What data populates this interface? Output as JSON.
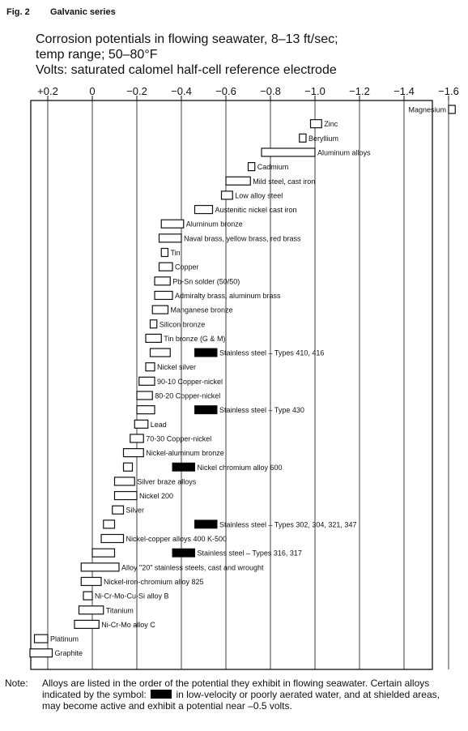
{
  "header": {
    "fig_label": "Fig. 2",
    "fig_title": "Galvanic series",
    "subtitle_lines": [
      "Corrosion potentials in flowing seawater, 8–13 ft/sec;",
      "temp range; 50–80°F",
      "Volts: saturated calomel half-cell reference electrode"
    ]
  },
  "chart_data": {
    "type": "range-bar",
    "title": "Corrosion potentials in flowing seawater, 8–13 ft/sec; temp range; 50–80°F",
    "xlabel": "Volts: saturated calomel half-cell reference electrode",
    "xlim": [
      0.3,
      -1.7
    ],
    "x_direction": "decreasing left to right",
    "ticks": [
      {
        "value": 0.2,
        "label": "+0.2"
      },
      {
        "value": 0.0,
        "label": "0"
      },
      {
        "value": -0.2,
        "label": "−0.2"
      },
      {
        "value": -0.4,
        "label": "−0.4"
      },
      {
        "value": -0.6,
        "label": "−0.6"
      },
      {
        "value": -0.8,
        "label": "−0.8"
      },
      {
        "value": -1.0,
        "label": "−1.0"
      },
      {
        "value": -1.2,
        "label": "−1.2"
      },
      {
        "value": -1.4,
        "label": "−1.4"
      },
      {
        "value": -1.6,
        "label": "−1.6"
      }
    ],
    "grid": "vertical lines at tick values",
    "series": [
      {
        "label": "Magnesium",
        "range": [
          -1.6,
          -1.63
        ],
        "label_pos": "left"
      },
      {
        "label": "Zinc",
        "range": [
          -0.98,
          -1.03
        ]
      },
      {
        "label": "Beryllium",
        "range": [
          -0.93,
          -0.96
        ]
      },
      {
        "label": "Aluminum alloys",
        "range": [
          -0.76,
          -1.0
        ]
      },
      {
        "label": "Cadmium",
        "range": [
          -0.7,
          -0.73
        ]
      },
      {
        "label": "Mild steel, cast iron",
        "range": [
          -0.6,
          -0.71
        ]
      },
      {
        "label": "Low alloy steel",
        "range": [
          -0.58,
          -0.63
        ]
      },
      {
        "label": "Austenitic nickel cast iron",
        "range": [
          -0.46,
          -0.54
        ]
      },
      {
        "label": "Aluminum bronze",
        "range": [
          -0.31,
          -0.41
        ]
      },
      {
        "label": "Naval brass, yellow brass, red brass",
        "range": [
          -0.3,
          -0.4
        ]
      },
      {
        "label": "Tin",
        "range": [
          -0.31,
          -0.34
        ]
      },
      {
        "label": "Copper",
        "range": [
          -0.3,
          -0.36
        ]
      },
      {
        "label": "Pb-Sn solder (50/50)",
        "range": [
          -0.28,
          -0.35
        ]
      },
      {
        "label": "Admiralty brass, aluminum brass",
        "range": [
          -0.28,
          -0.36
        ]
      },
      {
        "label": "Manganese bronze",
        "range": [
          -0.27,
          -0.34
        ]
      },
      {
        "label": "Silicon bronze",
        "range": [
          -0.26,
          -0.29
        ]
      },
      {
        "label": "Tin bronze (G & M)",
        "range": [
          -0.24,
          -0.31
        ]
      },
      {
        "label": "Stainless steel – Types 410, 416",
        "range": [
          -0.26,
          -0.35
        ],
        "active_range": [
          -0.46,
          -0.56
        ]
      },
      {
        "label": "Nickel silver",
        "range": [
          -0.24,
          -0.28
        ]
      },
      {
        "label": "90-10 Copper-nickel",
        "range": [
          -0.21,
          -0.28
        ]
      },
      {
        "label": "80-20 Copper-nickel",
        "range": [
          -0.2,
          -0.27
        ]
      },
      {
        "label": "Stainless steel – Type 430",
        "range": [
          -0.2,
          -0.28
        ],
        "active_range": [
          -0.46,
          -0.56
        ]
      },
      {
        "label": "Lead",
        "range": [
          -0.19,
          -0.25
        ]
      },
      {
        "label": "70-30 Copper-nickel",
        "range": [
          -0.17,
          -0.23
        ]
      },
      {
        "label": "Nickel-aluminum bronze",
        "range": [
          -0.14,
          -0.23
        ]
      },
      {
        "label": "Nickel chromium alloy 600",
        "range": [
          -0.14,
          -0.18
        ],
        "active_range": [
          -0.36,
          -0.46
        ]
      },
      {
        "label": "Silver braze alloys",
        "range": [
          -0.1,
          -0.19
        ]
      },
      {
        "label": "Nickel 200",
        "range": [
          -0.1,
          -0.2
        ]
      },
      {
        "label": "Silver",
        "range": [
          -0.09,
          -0.14
        ]
      },
      {
        "label": "Stainless steel – Types 302, 304, 321, 347",
        "range": [
          -0.05,
          -0.1
        ],
        "active_range": [
          -0.46,
          -0.56
        ]
      },
      {
        "label": "Nickel-copper alloys 400 K-500",
        "range": [
          -0.04,
          -0.14
        ]
      },
      {
        "label": "Stainless steel – Types 316, 317",
        "range": [
          0.0,
          -0.1
        ],
        "active_range": [
          -0.36,
          -0.46
        ]
      },
      {
        "label": "Alloy \"20\" stainless steels, cast and wrought",
        "range": [
          0.05,
          -0.12
        ]
      },
      {
        "label": "Nickel-iron-chromium alloy 825",
        "range": [
          0.05,
          -0.04
        ]
      },
      {
        "label": "Ni-Cr-Mo-Cu-Si alloy B",
        "range": [
          0.04,
          0.0
        ]
      },
      {
        "label": "Titanium",
        "range": [
          0.06,
          -0.05
        ]
      },
      {
        "label": "Ni-Cr-Mo alloy C",
        "range": [
          0.08,
          -0.03
        ]
      },
      {
        "label": "Platinum",
        "range": [
          0.26,
          0.2
        ]
      },
      {
        "label": "Graphite",
        "range": [
          0.28,
          0.18
        ]
      }
    ]
  },
  "note": {
    "label": "Note:",
    "text_before_symbol": "Alloys are listed in the order of the potential they exhibit in flowing seawater. Certain alloys indicated by the symbol:",
    "text_after_symbol": "in low-velocity or poorly aerated water, and at shielded areas, may become active and exhibit a potential near –0.5 volts."
  },
  "colors": {
    "ink": "#111111",
    "background": "#ffffff",
    "active_fill": "#000000"
  }
}
